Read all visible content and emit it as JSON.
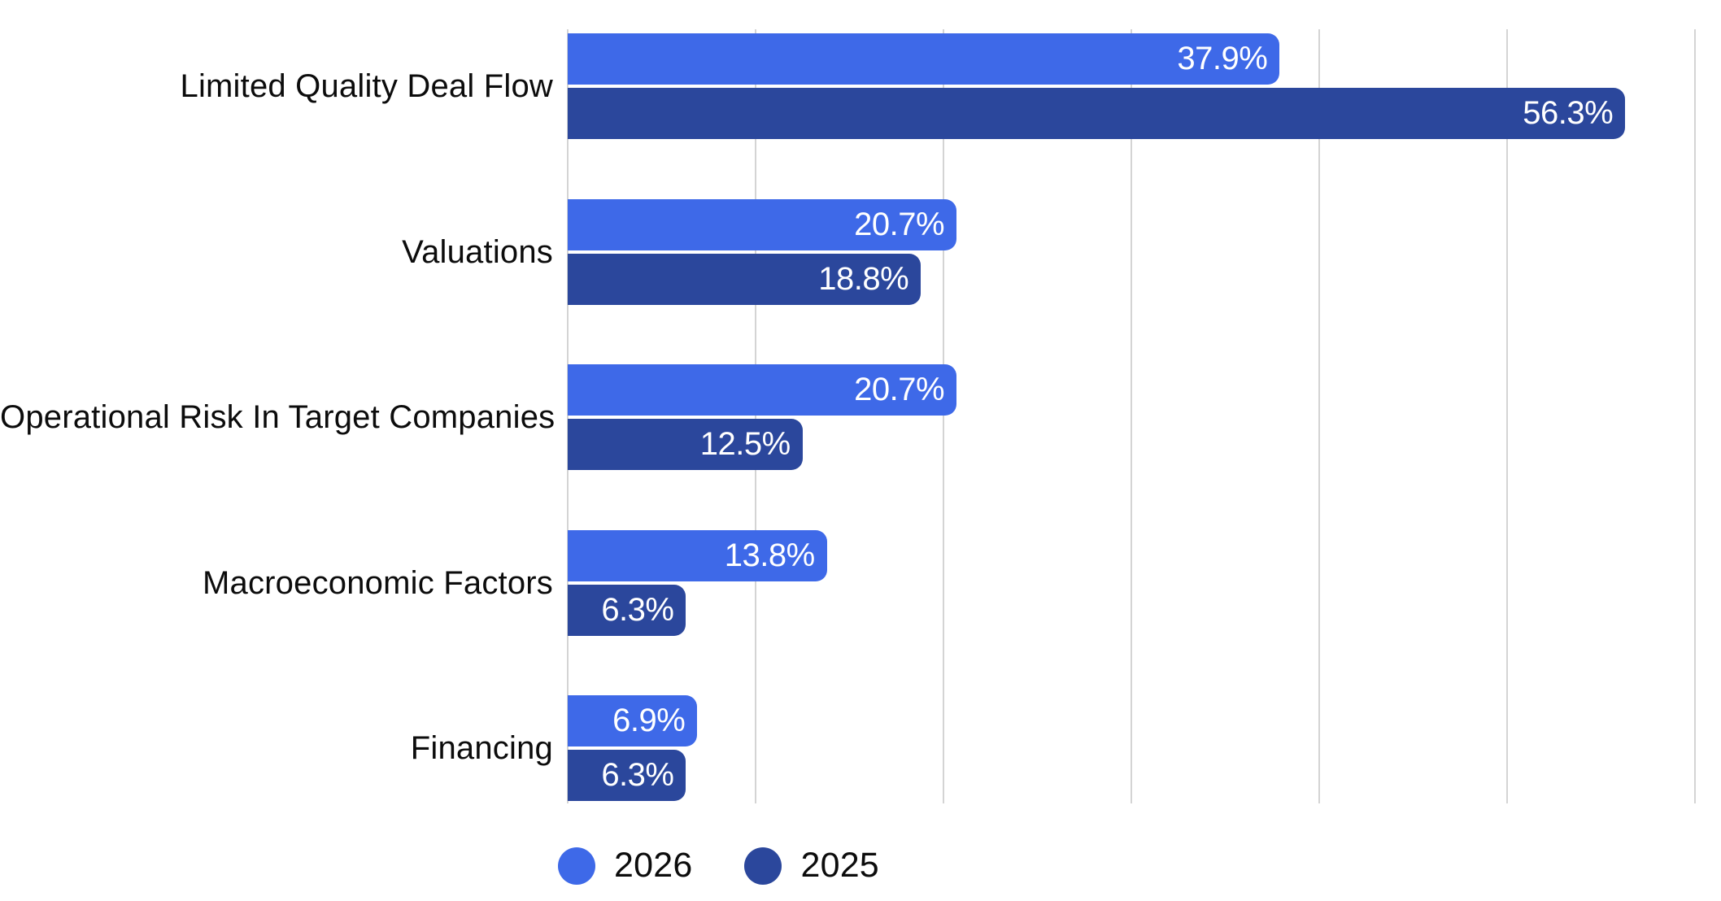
{
  "chart_data": {
    "type": "bar",
    "orientation": "horizontal",
    "title": "",
    "xlabel": "",
    "ylabel": "",
    "categories": [
      "Limited Quality Deal Flow",
      "Valuations",
      "Operational Risk In Target Companies",
      "Macroeconomic Factors",
      "Financing"
    ],
    "series": [
      {
        "name": "2026",
        "color": "#3E69E8",
        "values": [
          37.9,
          20.7,
          20.7,
          13.8,
          6.9
        ],
        "labels": [
          "37.9%",
          "20.7%",
          "20.7%",
          "13.8%",
          "6.9%"
        ]
      },
      {
        "name": "2025",
        "color": "#2B479C",
        "values": [
          56.3,
          18.8,
          12.5,
          6.3,
          6.3
        ],
        "labels": [
          "56.3%",
          "18.8%",
          "12.5%",
          "6.3%",
          "6.3%"
        ]
      }
    ],
    "axis": {
      "min": 0,
      "max": 61.4,
      "gridlines_pct": [
        0,
        10,
        20,
        30,
        40,
        50,
        60
      ],
      "grid_visible": true
    },
    "colors": {
      "grid": "#d4d4d4",
      "background": "#ffffff",
      "category_text": "#0c0c0c",
      "value_text": "#ffffff",
      "legend_text": "#0c0c0c"
    },
    "legend_position": "bottom",
    "value_labels_position": "inside-end"
  },
  "legend": {
    "items": [
      {
        "label": "2026",
        "color": "#3E69E8"
      },
      {
        "label": "2025",
        "color": "#2B479C"
      }
    ]
  }
}
